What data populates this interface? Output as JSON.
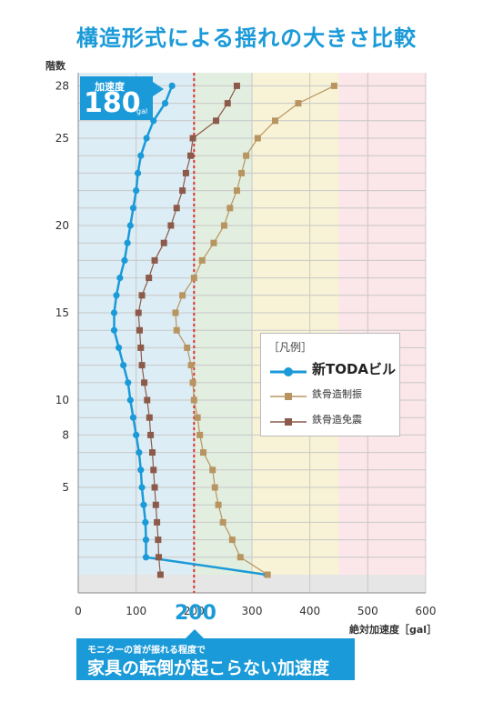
{
  "title": "構造形式による揺れの大きさ比較",
  "chart_data": {
    "type": "line",
    "ylabel": "階数",
    "xlabel": "絶対加速度［gal］",
    "xlim": [
      0,
      600
    ],
    "xticks": [
      0,
      100,
      200,
      300,
      400,
      500,
      600
    ],
    "ylim": [
      0,
      29
    ],
    "yticks": [
      5,
      8,
      10,
      15,
      20,
      25,
      28
    ],
    "zones": [
      {
        "from": 0,
        "to": 200,
        "color": "#dcedf5"
      },
      {
        "from": 200,
        "to": 300,
        "color": "#e2eedf"
      },
      {
        "from": 300,
        "to": 450,
        "color": "#f8f3d6"
      },
      {
        "from": 450,
        "to": 600,
        "color": "#fbe6e9"
      }
    ],
    "reference_x": 200,
    "series": [
      {
        "name": "新TODAビル",
        "color": "#1a9ad8",
        "marker": "circle",
        "floors": [
          0,
          1,
          2,
          3,
          4,
          5,
          6,
          7,
          8,
          9,
          10,
          11,
          12,
          13,
          14,
          15,
          16,
          17,
          18,
          19,
          20,
          21,
          22,
          23,
          24,
          25,
          26,
          27,
          28
        ],
        "values": [
          325,
          117,
          117,
          116,
          113,
          110,
          108,
          105,
          100,
          95,
          90,
          86,
          78,
          70,
          62,
          62,
          66,
          72,
          80,
          85,
          90,
          95,
          100,
          103,
          108,
          118,
          130,
          150,
          162
        ]
      },
      {
        "name": "鉄骨造制振",
        "color": "#b89560",
        "marker": "square",
        "floors": [
          0,
          1,
          2,
          3,
          4,
          5,
          6,
          7,
          8,
          9,
          10,
          11,
          12,
          13,
          14,
          15,
          16,
          17,
          18,
          19,
          20,
          21,
          22,
          23,
          24,
          25,
          26,
          27,
          28
        ],
        "values": [
          327,
          280,
          266,
          250,
          242,
          236,
          232,
          216,
          210,
          206,
          200,
          198,
          195,
          188,
          170,
          168,
          180,
          200,
          214,
          234,
          252,
          262,
          274,
          282,
          290,
          310,
          340,
          380,
          442
        ]
      },
      {
        "name": "鉄骨造免震",
        "color": "#8c5a4a",
        "marker": "square",
        "floors": [
          0,
          1,
          2,
          3,
          4,
          5,
          6,
          7,
          8,
          9,
          10,
          11,
          12,
          13,
          14,
          15,
          16,
          17,
          18,
          19,
          20,
          21,
          22,
          23,
          24,
          25,
          26,
          27,
          28
        ],
        "values": [
          142,
          139,
          138,
          136,
          134,
          132,
          130,
          128,
          125,
          123,
          119,
          114,
          110,
          108,
          106,
          104,
          110,
          122,
          132,
          148,
          160,
          170,
          180,
          186,
          194,
          198,
          238,
          258,
          274
        ]
      }
    ]
  },
  "callout": {
    "label": "加速度",
    "value": "180",
    "unit": "gal"
  },
  "reference": {
    "value": "200"
  },
  "banner": {
    "small": "モニターの首が振れる程度で",
    "big": "家具の転倒が起こらない加速度"
  },
  "legend": {
    "title": "［凡例］",
    "items": [
      "新TODAビル",
      "鉄骨造制振",
      "鉄骨造免震"
    ]
  },
  "colors": {
    "accent": "#1a9ad8",
    "reference_line": "#e0302a"
  }
}
